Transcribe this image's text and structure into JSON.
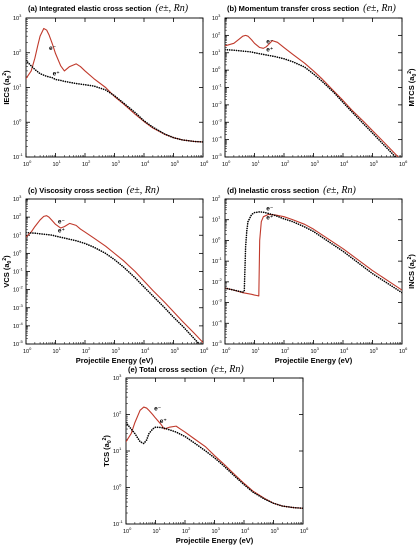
{
  "chart_data": [
    {
      "id": "a",
      "type": "line",
      "title_text": "(a) Integrated elastic cross section",
      "title_math": "(e±, Rn)",
      "ylabel_text": "IECS (a",
      "ylabel_sub": "0",
      "ylabel_sup": "2",
      "xlabel": "",
      "xlog": true,
      "ylog": true,
      "xlim": [
        1,
        1000000
      ],
      "ylim": [
        0.1,
        1000
      ],
      "x_tick_exponents": [
        "0",
        "1",
        "2",
        "3",
        "4",
        "5",
        "6"
      ],
      "y_tick_exponents": [
        "-1",
        "0",
        "1",
        "2",
        "3"
      ],
      "series_labels": [
        {
          "name": "e⁻",
          "at": [
            6,
            120
          ]
        },
        {
          "name": "e⁺",
          "at": [
            8,
            22
          ]
        }
      ],
      "series": [
        {
          "name": "e⁻",
          "color": "#c0392b",
          "style": "solid",
          "x": [
            1,
            1.5,
            2,
            2.5,
            3,
            4,
            5,
            6,
            8,
            10,
            15,
            20,
            30,
            50,
            70,
            100,
            200,
            500,
            1000,
            2000,
            5000,
            10000,
            20000,
            50000,
            100000,
            200000,
            500000,
            1000000
          ],
          "y": [
            18,
            30,
            70,
            160,
            300,
            500,
            450,
            330,
            170,
            95,
            42,
            30,
            40,
            48,
            40,
            30,
            18,
            10,
            5.5,
            3.4,
            1.7,
            1.05,
            0.68,
            0.45,
            0.36,
            0.31,
            0.28,
            0.27
          ]
        },
        {
          "name": "e⁺",
          "color": "#000000",
          "style": "dotted",
          "x": [
            1,
            1.5,
            2,
            3,
            5,
            8,
            10,
            15,
            20,
            50,
            100,
            200,
            500,
            1000,
            2000,
            5000,
            10000,
            20000,
            50000,
            100000,
            200000,
            500000,
            1000000
          ],
          "y": [
            60,
            42,
            33,
            25,
            21,
            19,
            17,
            16,
            15,
            13,
            12,
            11,
            8.5,
            5.8,
            3.6,
            1.9,
            1.1,
            0.72,
            0.46,
            0.36,
            0.31,
            0.28,
            0.27
          ]
        }
      ]
    },
    {
      "id": "b",
      "type": "line",
      "title_text": "(b) Momentum transfer cross section",
      "title_math": "(e±, Rn)",
      "ylabel_text": "MTCS (a",
      "ylabel_sub": "0",
      "ylabel_sup": "2",
      "xlabel": "",
      "xlog": true,
      "ylog": true,
      "xlim": [
        1,
        1000000
      ],
      "ylim": [
        1e-05,
        1000
      ],
      "x_tick_exponents": [
        "0",
        "1",
        "2",
        "3",
        "4",
        "5",
        "6"
      ],
      "y_tick_exponents": [
        "-5",
        "-4",
        "-3",
        "-2",
        "-1",
        "0",
        "1",
        "2",
        "3"
      ],
      "series_labels": [
        {
          "name": "e⁻",
          "at": [
            25,
            35
          ]
        },
        {
          "name": "e⁺",
          "at": [
            25,
            12
          ]
        }
      ],
      "series": [
        {
          "name": "e⁻",
          "color": "#c0392b",
          "style": "solid",
          "x": [
            1,
            2,
            3,
            4,
            5,
            6,
            8,
            10,
            15,
            20,
            25,
            30,
            40,
            60,
            100,
            200,
            500,
            1000,
            2000,
            5000,
            10000,
            20000,
            50000,
            100000,
            200000,
            500000,
            1000000
          ],
          "y": [
            25,
            35,
            60,
            90,
            100,
            90,
            55,
            35,
            20,
            18,
            22,
            30,
            50,
            40,
            20,
            8,
            2.5,
            0.9,
            0.3,
            0.06,
            0.018,
            0.005,
            0.0011,
            0.00033,
            0.0001,
            2e-05,
            6e-06
          ]
        },
        {
          "name": "e⁺",
          "color": "#000000",
          "style": "dotted",
          "x": [
            1,
            2,
            3,
            5,
            8,
            10,
            20,
            50,
            100,
            200,
            500,
            1000,
            2000,
            5000,
            10000,
            20000,
            50000,
            100000,
            200000,
            500000,
            1000000
          ],
          "y": [
            15,
            14,
            13,
            12,
            11,
            10,
            8,
            6,
            4.5,
            3,
            1.5,
            0.6,
            0.22,
            0.05,
            0.014,
            0.004,
            0.0008,
            0.00024,
            7e-05,
            1.4e-05,
            4e-06
          ]
        }
      ]
    },
    {
      "id": "c",
      "type": "line",
      "title_text": "(c) Viscosity cross section",
      "title_math": "(e±, Rn)",
      "ylabel_text": "VCS (a",
      "ylabel_sub": "0",
      "ylabel_sup": "2",
      "xlabel": "Projectile Energy (eV)",
      "xlog": true,
      "ylog": true,
      "xlim": [
        1,
        1000000
      ],
      "ylim": [
        1e-05,
        1000
      ],
      "x_tick_exponents": [
        "0",
        "1",
        "2",
        "3",
        "4",
        "5",
        "6"
      ],
      "y_tick_exponents": [
        "-5",
        "-4",
        "-3",
        "-2",
        "-1",
        "0",
        "1",
        "2",
        "3"
      ],
      "series_labels": [
        {
          "name": "e⁻",
          "at": [
            12,
            45
          ]
        },
        {
          "name": "e⁺",
          "at": [
            12,
            14
          ]
        }
      ],
      "series": [
        {
          "name": "e⁻",
          "color": "#c0392b",
          "style": "solid",
          "x": [
            1,
            1.5,
            2,
            3,
            4,
            5,
            6,
            8,
            10,
            15,
            20,
            30,
            50,
            70,
            100,
            200,
            500,
            1000,
            2000,
            5000,
            10000,
            20000,
            50000,
            100000,
            200000,
            500000,
            1000000
          ],
          "y": [
            8,
            15,
            30,
            70,
            110,
            120,
            100,
            60,
            40,
            25,
            30,
            45,
            35,
            22,
            15,
            7,
            2.5,
            1,
            0.4,
            0.1,
            0.03,
            0.009,
            0.002,
            0.0006,
            0.00018,
            4e-05,
            1.2e-05
          ]
        },
        {
          "name": "e⁺",
          "color": "#000000",
          "style": "dotted",
          "x": [
            1,
            2,
            3,
            5,
            8,
            10,
            20,
            50,
            100,
            200,
            500,
            1000,
            2000,
            5000,
            10000,
            20000,
            50000,
            100000,
            200000,
            500000,
            1000000
          ],
          "y": [
            14,
            13,
            12,
            11,
            10,
            9,
            7,
            5,
            3.5,
            2.2,
            1,
            0.45,
            0.18,
            0.045,
            0.014,
            0.0045,
            0.001,
            0.0003,
            0.0001,
            2e-05,
            6e-06
          ]
        }
      ]
    },
    {
      "id": "d",
      "type": "line",
      "title_text": "(d) Inelastic cross section",
      "title_math": "(e±, Rn)",
      "ylabel_text": "INCS (a",
      "ylabel_sub": "0",
      "ylabel_sup": "2",
      "xlabel": "Projectile Energy (eV)",
      "xlog": true,
      "ylog": true,
      "xlim": [
        1,
        1000000
      ],
      "ylim": [
        1e-05,
        100
      ],
      "x_tick_exponents": [
        "0",
        "1",
        "2",
        "3",
        "4",
        "5",
        "6"
      ],
      "y_tick_exponents": [
        "-5",
        "-4",
        "-3",
        "-2",
        "-1",
        "0",
        "1",
        "2"
      ],
      "series_labels": [
        {
          "name": "e⁻",
          "at": [
            25,
            28
          ]
        },
        {
          "name": "e⁺",
          "at": [
            25,
            10
          ]
        }
      ],
      "series": [
        {
          "name": "e⁻",
          "color": "#c0392b",
          "style": "solid",
          "x": [
            1,
            2,
            4,
            8,
            10,
            12,
            14,
            15,
            17,
            20,
            30,
            50,
            100,
            200,
            500,
            1000,
            10000,
            100000,
            1000000
          ],
          "y": [
            0.005,
            0.004,
            0.003,
            0.0025,
            0.0023,
            0.0022,
            0.0021,
            1,
            8,
            14,
            18,
            17,
            14,
            10,
            6,
            3.5,
            0.4,
            0.035,
            0.004
          ]
        },
        {
          "name": "e⁺",
          "color": "#000000",
          "style": "dotted",
          "x": [
            1,
            2,
            3,
            4,
            4.5,
            5,
            5.5,
            6,
            8,
            10,
            15,
            20,
            30,
            50,
            100,
            200,
            500,
            1000,
            10000,
            100000,
            1000000
          ],
          "y": [
            0.005,
            0.004,
            0.0035,
            0.0032,
            0.0035,
            0.5,
            3,
            8,
            18,
            22,
            24,
            23,
            20,
            16,
            11,
            8,
            4.5,
            2.7,
            0.3,
            0.025,
            0.003
          ]
        }
      ]
    },
    {
      "id": "e",
      "type": "line",
      "title_text": "(e) Total cross section",
      "title_math": "(e±, Rn)",
      "ylabel_text": "TCS (a",
      "ylabel_sub": "0",
      "ylabel_sup": "2",
      "xlabel": "Projectile Energy (eV)",
      "xlog": true,
      "ylog": true,
      "xlim": [
        1,
        1000000
      ],
      "ylim": [
        0.1,
        1000
      ],
      "x_tick_exponents": [
        "0",
        "1",
        "2",
        "3",
        "4",
        "5",
        "6"
      ],
      "y_tick_exponents": [
        "-1",
        "0",
        "1",
        "2",
        "3"
      ],
      "series_labels": [
        {
          "name": "e⁻",
          "at": [
            9,
            130
          ]
        },
        {
          "name": "e⁺",
          "at": [
            14,
            58
          ]
        }
      ],
      "series": [
        {
          "name": "e⁻",
          "color": "#c0392b",
          "style": "solid",
          "x": [
            1,
            1.5,
            2,
            3,
            4,
            5,
            6,
            8,
            10,
            15,
            20,
            30,
            50,
            70,
            100,
            200,
            500,
            1000,
            2000,
            5000,
            10000,
            20000,
            50000,
            100000,
            200000,
            500000,
            1000000
          ],
          "y": [
            18,
            30,
            60,
            130,
            160,
            150,
            130,
            100,
            80,
            55,
            40,
            45,
            48,
            40,
            33,
            22,
            13,
            7.5,
            4.5,
            2.2,
            1.3,
            0.8,
            0.5,
            0.37,
            0.31,
            0.28,
            0.27
          ]
        },
        {
          "name": "e⁺",
          "color": "#000000",
          "style": "dotted",
          "x": [
            1,
            2,
            3,
            4,
            5,
            6,
            8,
            10,
            15,
            20,
            30,
            50,
            100,
            200,
            500,
            1000,
            2000,
            5000,
            10000,
            20000,
            50000,
            100000,
            200000,
            500000,
            1000000
          ],
          "y": [
            60,
            30,
            18,
            16,
            20,
            30,
            40,
            45,
            44,
            42,
            38,
            33,
            25,
            17,
            10,
            6.5,
            4,
            2,
            1.2,
            0.75,
            0.48,
            0.37,
            0.31,
            0.28,
            0.27
          ]
        }
      ]
    }
  ]
}
